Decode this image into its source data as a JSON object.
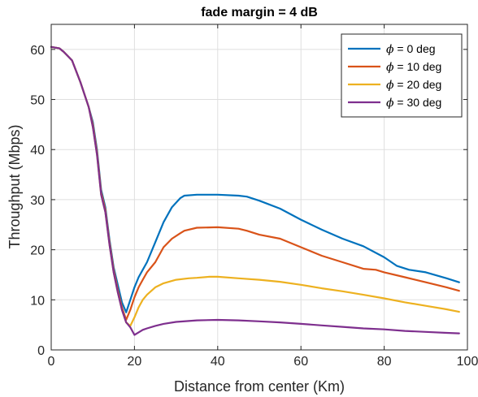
{
  "chart_data": {
    "type": "line",
    "title": "fade margin = 4 dB",
    "xlabel": "Distance from center (Km)",
    "ylabel": "Throughput (Mbps)",
    "xlim": [
      0,
      100
    ],
    "ylim": [
      0,
      65
    ],
    "xticks": [
      0,
      20,
      40,
      60,
      80,
      100
    ],
    "yticks": [
      0,
      10,
      20,
      30,
      40,
      50,
      60
    ],
    "grid": true,
    "legend_position": "top-right",
    "series": [
      {
        "name": "ϕ = 0 deg",
        "legend_symbol": "ϕ",
        "legend_text": " = 0 deg",
        "color": "#0072bd",
        "x": [
          0,
          2,
          3,
          5,
          7,
          9,
          10,
          11,
          12,
          13,
          14,
          15,
          16,
          17,
          18,
          19,
          20,
          21,
          22,
          23,
          25,
          27,
          29,
          31,
          32,
          35,
          40,
          45,
          47,
          50,
          55,
          60,
          65,
          70,
          75,
          80,
          83,
          86,
          90,
          95,
          98
        ],
        "y": [
          60.5,
          60.2,
          59.5,
          57.8,
          53.5,
          48.5,
          45.5,
          40,
          32,
          28.5,
          22,
          16.5,
          13,
          9.5,
          7.5,
          10,
          12.5,
          14.5,
          16,
          17.5,
          21.5,
          25.5,
          28.5,
          30.3,
          30.8,
          31,
          31,
          30.8,
          30.6,
          29.8,
          28.2,
          26,
          24,
          22.2,
          20.7,
          18.5,
          16.8,
          16,
          15.5,
          14.3,
          13.5
        ]
      },
      {
        "name": "ϕ = 10 deg",
        "legend_symbol": "ϕ",
        "legend_text": " = 10 deg",
        "color": "#d95319",
        "x": [
          0,
          2,
          3,
          5,
          7,
          9,
          10,
          11,
          12,
          13,
          14,
          15,
          16,
          17,
          18,
          19,
          20,
          21,
          22,
          23,
          25,
          27,
          29,
          31,
          32,
          35,
          40,
          45,
          47,
          50,
          55,
          60,
          65,
          70,
          75,
          78,
          80,
          85,
          90,
          95,
          98
        ],
        "y": [
          60.5,
          60.2,
          59.5,
          57.8,
          53.5,
          48.5,
          45,
          39.5,
          31.5,
          28,
          21.5,
          16,
          12,
          8.5,
          6,
          8,
          10.5,
          12.5,
          14,
          15.5,
          17.5,
          20.5,
          22.2,
          23.3,
          23.8,
          24.4,
          24.5,
          24.2,
          23.8,
          23,
          22.2,
          20.5,
          18.8,
          17.5,
          16.2,
          16,
          15.5,
          14.5,
          13.5,
          12.5,
          11.8
        ]
      },
      {
        "name": "ϕ = 20 deg",
        "legend_symbol": "ϕ",
        "legend_text": " = 20 deg",
        "color": "#edb120",
        "x": [
          0,
          2,
          3,
          5,
          7,
          9,
          10,
          11,
          12,
          13,
          14,
          15,
          16,
          17,
          18,
          19,
          20,
          21,
          22,
          23,
          25,
          27,
          30,
          33,
          35,
          38,
          40,
          45,
          50,
          55,
          60,
          65,
          70,
          75,
          80,
          85,
          90,
          95,
          98
        ],
        "y": [
          60.5,
          60.2,
          59.5,
          57.8,
          53.5,
          48.5,
          44.5,
          39,
          31,
          27.5,
          21,
          15.5,
          11.5,
          8,
          5.5,
          4.8,
          6.5,
          8.5,
          10,
          11,
          12.5,
          13.3,
          14,
          14.3,
          14.4,
          14.6,
          14.6,
          14.3,
          14,
          13.6,
          13,
          12.3,
          11.7,
          11,
          10.3,
          9.5,
          8.8,
          8.1,
          7.6
        ]
      },
      {
        "name": "ϕ = 30 deg",
        "legend_symbol": "ϕ",
        "legend_text": " = 30 deg",
        "color": "#7e2f8e",
        "x": [
          0,
          2,
          3,
          5,
          7,
          9,
          10,
          11,
          12,
          13,
          14,
          15,
          16,
          17,
          18,
          19,
          20,
          21,
          22,
          23,
          25,
          27,
          30,
          35,
          40,
          45,
          50,
          55,
          60,
          65,
          70,
          75,
          80,
          85,
          90,
          95,
          98
        ],
        "y": [
          60.5,
          60.2,
          59.5,
          57.8,
          53.5,
          48.5,
          44.5,
          39,
          31,
          27.5,
          21,
          15.5,
          11.5,
          8,
          5.5,
          4.5,
          3,
          3.5,
          4,
          4.3,
          4.8,
          5.2,
          5.6,
          5.9,
          6,
          5.9,
          5.7,
          5.5,
          5.2,
          4.9,
          4.6,
          4.3,
          4.1,
          3.8,
          3.6,
          3.4,
          3.3
        ]
      }
    ]
  }
}
